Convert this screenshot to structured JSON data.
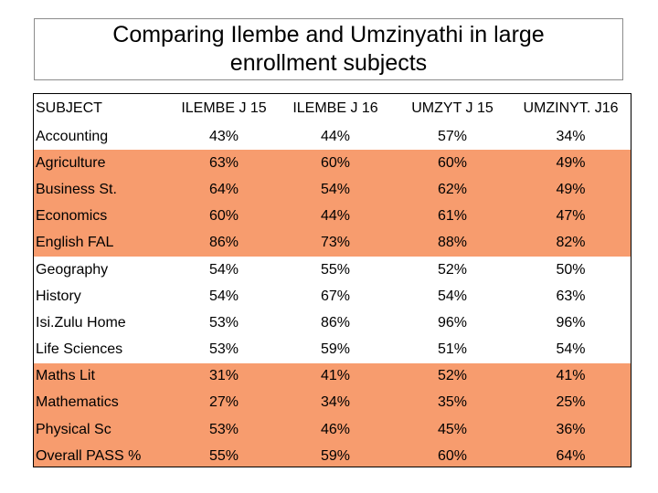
{
  "title": {
    "line1": "Comparing Ilembe and Umzinyathi in large",
    "line2": "enrollment subjects"
  },
  "colors": {
    "highlight": "#f79c6e",
    "plain": "#ffffff"
  },
  "table": {
    "headers": [
      "SUBJECT",
      "ILEMBE J 15",
      "ILEMBE J 16",
      "UMZYT J 15",
      "UMZINYT. J16"
    ],
    "rows": [
      {
        "subject": "Accounting",
        "values": [
          "43%",
          "44%",
          "57%",
          "34%"
        ],
        "highlight": false
      },
      {
        "subject": "Agriculture",
        "values": [
          "63%",
          "60%",
          "60%",
          "49%"
        ],
        "highlight": true
      },
      {
        "subject": "Business St.",
        "values": [
          "64%",
          "54%",
          "62%",
          "49%"
        ],
        "highlight": true
      },
      {
        "subject": "Economics",
        "values": [
          "60%",
          "44%",
          "61%",
          "47%"
        ],
        "highlight": true
      },
      {
        "subject": "English FAL",
        "values": [
          "86%",
          "73%",
          "88%",
          "82%"
        ],
        "highlight": true
      },
      {
        "subject": "Geography",
        "values": [
          "54%",
          "55%",
          "52%",
          "50%"
        ],
        "highlight": false
      },
      {
        "subject": "History",
        "values": [
          "54%",
          "67%",
          "54%",
          "63%"
        ],
        "highlight": false
      },
      {
        "subject": "Isi.Zulu Home",
        "values": [
          "53%",
          "86%",
          "96%",
          "96%"
        ],
        "highlight": false
      },
      {
        "subject": "Life Sciences",
        "values": [
          "53%",
          "59%",
          "51%",
          "54%"
        ],
        "highlight": false
      },
      {
        "subject": "Maths Lit",
        "values": [
          "31%",
          "41%",
          "52%",
          "41%"
        ],
        "highlight": true
      },
      {
        "subject": "Mathematics",
        "values": [
          "27%",
          "34%",
          "35%",
          "25%"
        ],
        "highlight": true
      },
      {
        "subject": "Physical Sc",
        "values": [
          "53%",
          "46%",
          "45%",
          "36%"
        ],
        "highlight": true
      },
      {
        "subject": "Overall PASS %",
        "values": [
          "55%",
          "59%",
          "60%",
          "64%"
        ],
        "highlight": true
      }
    ]
  }
}
